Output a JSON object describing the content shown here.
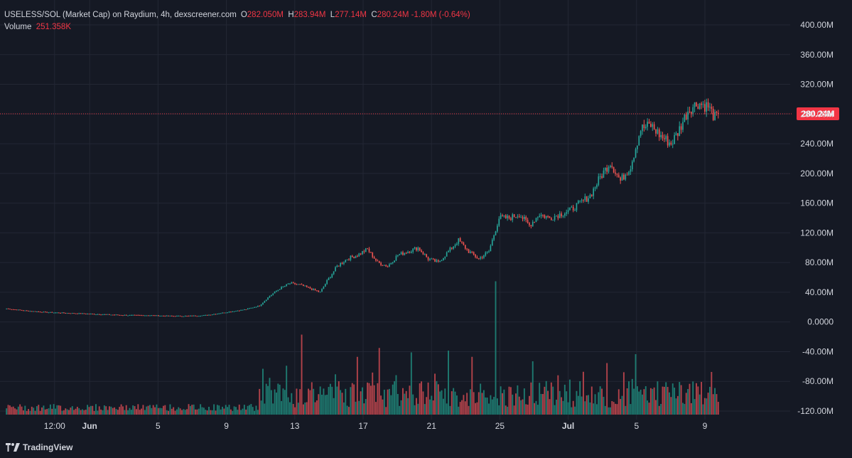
{
  "header": {
    "symbol": "USELESS/SOL (Market Cap) on Raydium, 4h, dexscreener.com",
    "o_label": "O",
    "o_value": "282.050M",
    "h_label": "H",
    "h_value": "283.94M",
    "l_label": "L",
    "l_value": "277.14M",
    "c_label": "C",
    "c_value": "280.24M",
    "change": "-1.80M (-0.64%)",
    "volume_label": "Volume",
    "volume_value": "251.358K"
  },
  "brand": "TradingView",
  "colors": {
    "background": "#151924",
    "grid": "#232734",
    "up": "#26a69a",
    "down": "#ef5350",
    "up_volume": "#1e7a70",
    "down_volume": "#b2424a",
    "text": "#d1d4dc",
    "price_line": "#f23645"
  },
  "chart_data": {
    "type": "candlestick",
    "title": "USELESS/SOL (Market Cap) on Raydium, 4h, dexscreener.com",
    "xlabel": "",
    "ylabel": "",
    "ylim": [
      -130,
      405
    ],
    "y_ticks": [
      "400.00M",
      "360.00M",
      "320.00M",
      "280.00M",
      "240.00M",
      "200.00M",
      "160.00M",
      "120.00M",
      "80.00M",
      "40.00M",
      "0.0000",
      "-40.00M",
      "-80.00M",
      "-120.00M"
    ],
    "x_ticks": [
      "12:00",
      "Jun",
      "5",
      "9",
      "13",
      "17",
      "21",
      "25",
      "Jul",
      "5",
      "9"
    ],
    "last_price": 280.24,
    "last_price_label": "280.24M",
    "grid": true,
    "legend": "top-left",
    "price_anchors": [
      [
        0,
        18
      ],
      [
        12,
        15
      ],
      [
        24,
        13
      ],
      [
        36,
        12
      ],
      [
        48,
        11
      ],
      [
        60,
        10
      ],
      [
        72,
        9
      ],
      [
        84,
        9
      ],
      [
        96,
        8
      ],
      [
        108,
        8
      ],
      [
        118,
        9
      ],
      [
        130,
        13
      ],
      [
        142,
        17
      ],
      [
        150,
        22
      ],
      [
        156,
        35
      ],
      [
        162,
        45
      ],
      [
        168,
        52
      ],
      [
        174,
        50
      ],
      [
        180,
        45
      ],
      [
        186,
        40
      ],
      [
        190,
        55
      ],
      [
        196,
        75
      ],
      [
        202,
        85
      ],
      [
        208,
        90
      ],
      [
        214,
        98
      ],
      [
        220,
        80
      ],
      [
        226,
        75
      ],
      [
        232,
        90
      ],
      [
        238,
        95
      ],
      [
        244,
        100
      ],
      [
        250,
        85
      ],
      [
        256,
        80
      ],
      [
        262,
        95
      ],
      [
        268,
        110
      ],
      [
        274,
        95
      ],
      [
        280,
        85
      ],
      [
        286,
        95
      ],
      [
        292,
        140
      ],
      [
        298,
        140
      ],
      [
        304,
        145
      ],
      [
        310,
        130
      ],
      [
        316,
        145
      ],
      [
        322,
        140
      ],
      [
        328,
        145
      ],
      [
        334,
        150
      ],
      [
        340,
        160
      ],
      [
        346,
        170
      ],
      [
        352,
        195
      ],
      [
        358,
        215
      ],
      [
        364,
        190
      ],
      [
        370,
        210
      ],
      [
        376,
        260
      ],
      [
        382,
        265
      ],
      [
        388,
        250
      ],
      [
        394,
        240
      ],
      [
        398,
        255
      ],
      [
        404,
        285
      ],
      [
        410,
        295
      ],
      [
        416,
        290
      ],
      [
        420,
        275
      ],
      [
        422,
        278
      ]
    ],
    "volume_spikes": [
      {
        "t": 166,
        "v": 55
      },
      {
        "t": 175,
        "v": 90
      },
      {
        "t": 208,
        "v": 65
      },
      {
        "t": 221,
        "v": 75
      },
      {
        "t": 240,
        "v": 70
      },
      {
        "t": 262,
        "v": 72
      },
      {
        "t": 276,
        "v": 65
      },
      {
        "t": 290,
        "v": 150
      },
      {
        "t": 312,
        "v": 60
      },
      {
        "t": 356,
        "v": 58
      },
      {
        "t": 373,
        "v": 68
      },
      {
        "t": 418,
        "v": 48
      }
    ]
  }
}
